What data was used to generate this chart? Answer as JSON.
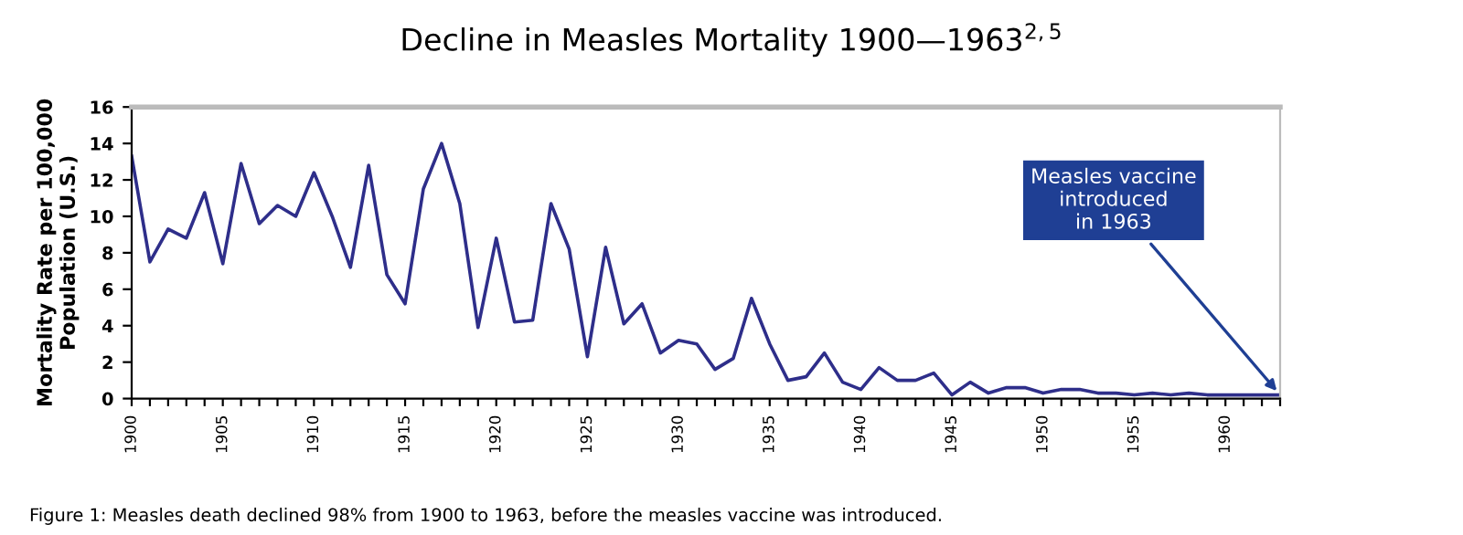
{
  "chart_data": {
    "type": "line",
    "title": "Decline in Measles Mortality 1900—1963$^{2,5}$",
    "ylabel": "Mortality Rate per 100,000\nPopulation (U.S.)",
    "x": [
      1900,
      1901,
      1902,
      1903,
      1904,
      1905,
      1906,
      1907,
      1908,
      1909,
      1910,
      1911,
      1912,
      1913,
      1914,
      1915,
      1916,
      1917,
      1918,
      1919,
      1920,
      1921,
      1922,
      1923,
      1924,
      1925,
      1926,
      1927,
      1928,
      1929,
      1930,
      1931,
      1932,
      1933,
      1934,
      1935,
      1936,
      1937,
      1938,
      1939,
      1940,
      1941,
      1942,
      1943,
      1944,
      1945,
      1946,
      1947,
      1948,
      1949,
      1950,
      1951,
      1952,
      1953,
      1954,
      1955,
      1956,
      1957,
      1958,
      1959,
      1960,
      1961,
      1962,
      1963
    ],
    "series": [
      {
        "color": "#2e2e8a",
        "values": [
          13.3,
          7.5,
          9.3,
          8.8,
          11.3,
          7.4,
          12.9,
          9.6,
          10.6,
          10.0,
          12.4,
          10.0,
          7.2,
          12.8,
          6.8,
          5.2,
          11.5,
          14.0,
          10.7,
          3.9,
          8.8,
          4.2,
          4.3,
          10.7,
          8.2,
          2.3,
          8.3,
          4.1,
          5.2,
          2.5,
          3.2,
          3.0,
          1.6,
          2.2,
          5.5,
          3.0,
          1.0,
          1.2,
          2.5,
          0.9,
          0.5,
          1.7,
          1.0,
          1.0,
          1.4,
          0.2,
          0.9,
          0.3,
          0.6,
          0.6,
          0.3,
          0.5,
          0.5,
          0.3,
          0.3,
          0.2,
          0.3,
          0.2,
          0.3,
          0.2,
          0.2,
          0.2,
          0.2,
          0.2
        ]
      }
    ],
    "xlim": [
      1900,
      1963
    ],
    "ylim": [
      0,
      16
    ],
    "yticks": [
      0,
      2,
      4,
      6,
      8,
      10,
      12,
      14,
      16
    ],
    "xticks": [
      1900,
      {
        "value": 1901,
        "label": null
      },
      {
        "value": 1902,
        "label": null
      },
      {
        "value": 1903,
        "label": null
      },
      {
        "value": 1904,
        "label": null
      },
      1905,
      {
        "value": 1906,
        "label": null
      },
      {
        "value": 1907,
        "label": null
      },
      {
        "value": 1908,
        "label": null
      },
      {
        "value": 1909,
        "label": null
      },
      1910,
      {
        "value": 1911,
        "label": null
      },
      {
        "value": 1912,
        "label": null
      },
      {
        "value": 1913,
        "label": null
      },
      {
        "value": 1914,
        "label": null
      },
      1915,
      {
        "value": 1916,
        "label": null
      },
      {
        "value": 1917,
        "label": null
      },
      {
        "value": 1918,
        "label": null
      },
      {
        "value": 1919,
        "label": null
      },
      1920,
      {
        "value": 1921,
        "label": null
      },
      {
        "value": 1922,
        "label": null
      },
      {
        "value": 1923,
        "label": null
      },
      {
        "value": 1924,
        "label": null
      },
      1925,
      {
        "value": 1926,
        "label": null
      },
      {
        "value": 1927,
        "label": null
      },
      {
        "value": 1928,
        "label": null
      },
      {
        "value": 1929,
        "label": null
      },
      1930,
      {
        "value": 1931,
        "label": null
      },
      {
        "value": 1932,
        "label": null
      },
      {
        "value": 1933,
        "label": null
      },
      {
        "value": 1934,
        "label": null
      },
      1935,
      {
        "value": 1936,
        "label": null
      },
      {
        "value": 1937,
        "label": null
      },
      {
        "value": 1938,
        "label": null
      },
      {
        "value": 1939,
        "label": null
      },
      1940,
      {
        "value": 1941,
        "label": null
      },
      {
        "value": 1942,
        "label": null
      },
      {
        "value": 1943,
        "label": null
      },
      {
        "value": 1944,
        "label": null
      },
      1945,
      {
        "value": 1946,
        "label": null
      },
      {
        "value": 1947,
        "label": null
      },
      {
        "value": 1948,
        "label": null
      },
      {
        "value": 1949,
        "label": null
      },
      1950,
      {
        "value": 1951,
        "label": null
      },
      {
        "value": 1952,
        "label": null
      },
      {
        "value": 1953,
        "label": null
      },
      {
        "value": 1954,
        "label": null
      },
      1955,
      {
        "value": 1956,
        "label": null
      },
      {
        "value": 1957,
        "label": null
      },
      {
        "value": 1958,
        "label": null
      },
      {
        "value": 1959,
        "label": null
      },
      1960,
      {
        "value": 1961,
        "label": null
      },
      {
        "value": 1962,
        "label": null
      },
      {
        "value": 1963,
        "label": null
      }
    ],
    "grid": false,
    "legend": false,
    "marker": "none",
    "line_style": "solid",
    "annotations": [
      {
        "text": "Measles vaccine\nintroduced\nin 1963",
        "x": 1963,
        "y": 0.2
      },
      "Figure 1: Measles death declined 98% from 1900 to 1963, before the measles vaccine was introduced."
    ]
  }
}
